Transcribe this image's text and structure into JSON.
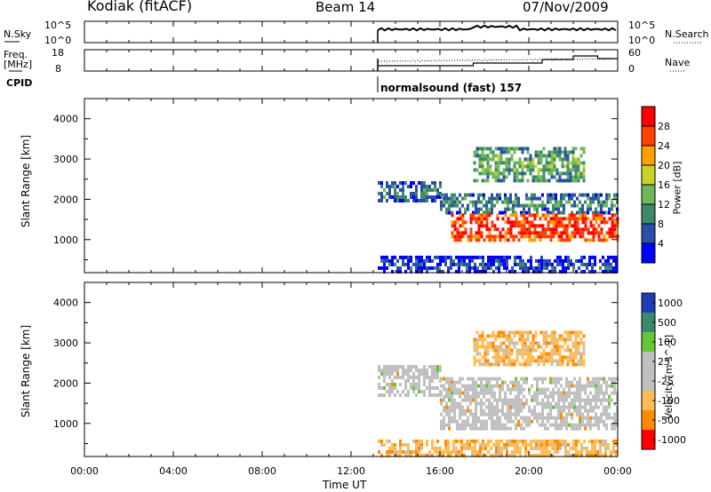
{
  "header": {
    "station": "Kodiak (fitACF)",
    "beam": "Beam 14",
    "date": "07/Nov/2009"
  },
  "top_panels": {
    "nsky_label": "N.Sky",
    "nsky_ticks": [
      "10^5",
      "10^0"
    ],
    "nsearch_label": "N.Search",
    "nsearch_ticks": [
      "10^5",
      "10^0"
    ],
    "freq_label": "Freq.",
    "freq_unit": "[MHz]",
    "freq_ticks": [
      "18",
      "8"
    ],
    "nave_label": "Nave",
    "nave_ticks": [
      "60",
      "0"
    ],
    "cpid_label": "CPID",
    "cpid_text": "normalsound (fast) 157"
  },
  "x_axis": {
    "ticks": [
      "00:00",
      "04:00",
      "08:00",
      "12:00",
      "16:00",
      "20:00",
      "00:00"
    ],
    "label": "Time UT",
    "range_hours": [
      0,
      24
    ],
    "data_start_hour": 13.2
  },
  "chart_data": [
    {
      "type": "heatmap",
      "name": "power",
      "ylabel": "Slant Range [km]",
      "yticks": [
        "4000",
        "3000",
        "2000",
        "1000"
      ],
      "ylim": [
        180,
        4500
      ],
      "colorbar_label": "Power [dB]",
      "colorbar_ticks": [
        "28",
        "24",
        "20",
        "16",
        "12",
        "8",
        "4"
      ],
      "colorbar_range": [
        0,
        32
      ],
      "colors": [
        "#0000ff",
        "#2a4fa8",
        "#3c8a6a",
        "#72b65a",
        "#c8d42a",
        "#ffa000",
        "#ff4000",
        "#ff0000"
      ],
      "bands": [
        {
          "t": [
            13.2,
            16.0
          ],
          "r": [
            2000,
            2450
          ],
          "level": 10
        },
        {
          "t": [
            16.0,
            24.0
          ],
          "r": [
            1700,
            2150
          ],
          "level": 11
        },
        {
          "t": [
            16.5,
            24.0
          ],
          "r": [
            950,
            1650
          ],
          "level": 29
        },
        {
          "t": [
            13.2,
            24.0
          ],
          "r": [
            200,
            600
          ],
          "level": 6
        },
        {
          "t": [
            17.5,
            22.5
          ],
          "r": [
            2500,
            3300
          ],
          "level": 14
        }
      ]
    },
    {
      "type": "heatmap",
      "name": "velocity",
      "ylabel": "Slant Range [km]",
      "yticks": [
        "4000",
        "3000",
        "2000",
        "1000"
      ],
      "ylim": [
        180,
        4500
      ],
      "colorbar_label": "Velocity [m s^-1]",
      "colorbar_ticks": [
        "1000",
        "500",
        "100",
        "25",
        "-25",
        "-100",
        "-500",
        "-1000"
      ],
      "colors": [
        "#1e3cb4",
        "#3c8a6a",
        "#64c832",
        "#c0c0c0",
        "#c0c0c0",
        "#ffbb55",
        "#ff8c00",
        "#ff0000"
      ],
      "bands": [
        {
          "t": [
            13.2,
            16.0
          ],
          "r": [
            1700,
            2450
          ],
          "level": 25
        },
        {
          "t": [
            16.0,
            24.0
          ],
          "r": [
            900,
            2150
          ],
          "level": 25
        },
        {
          "t": [
            13.2,
            24.0
          ],
          "r": [
            200,
            600
          ],
          "level": -100
        },
        {
          "t": [
            17.5,
            22.5
          ],
          "r": [
            2500,
            3300
          ],
          "level": -100
        }
      ]
    }
  ]
}
